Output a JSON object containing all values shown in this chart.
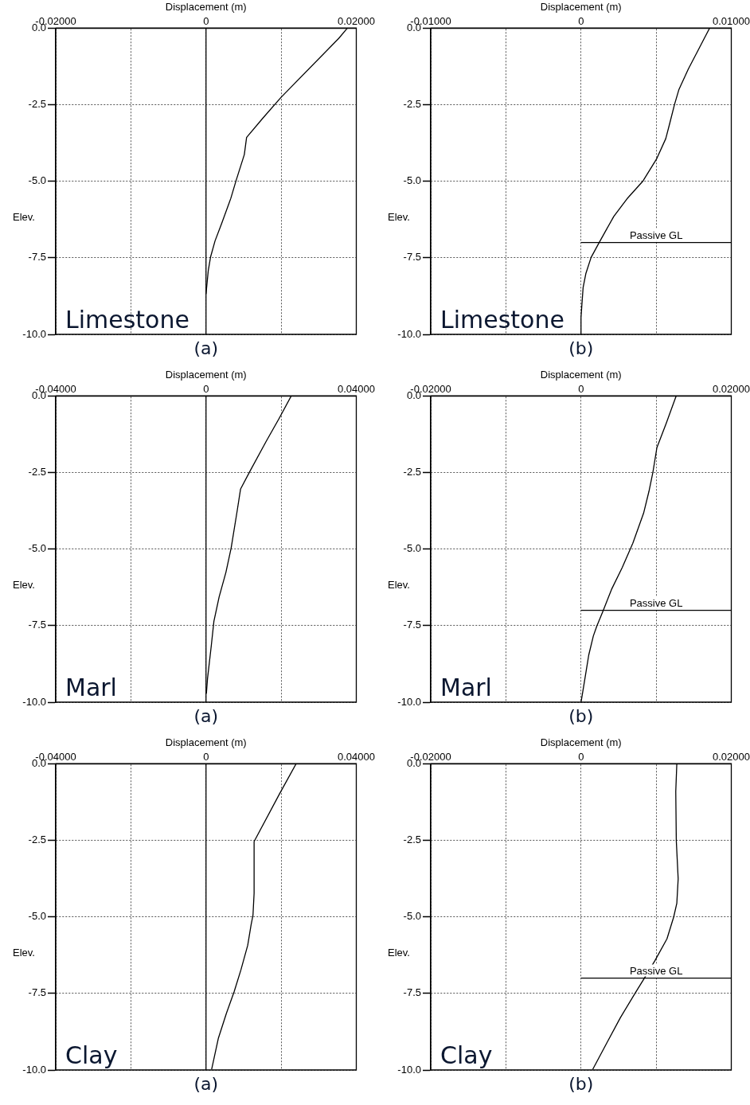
{
  "chart_data": [
    {
      "type": "line",
      "xlabel": "Displacement (m)",
      "ylabel": "Elev.",
      "annotations": [
        "Limestone",
        "(a)"
      ],
      "grid": true,
      "xlim": [
        -0.02,
        0.02
      ],
      "xticks": [
        {
          "value": -0.02,
          "label": "-0.02000"
        },
        {
          "value": -0.01,
          "label": null
        },
        {
          "value": 0,
          "label": "0"
        },
        {
          "value": 0.01,
          "label": null
        },
        {
          "value": 0.02,
          "label": "0.02000"
        }
      ],
      "ylim": [
        -10,
        0
      ],
      "yticks": [
        {
          "value": -10,
          "label": "-10.0"
        },
        {
          "value": -7.5,
          "label": "-7.5"
        },
        {
          "value": -5,
          "label": "-5.0"
        },
        {
          "value": -2.5,
          "label": "-2.5"
        },
        {
          "value": 0,
          "label": "0.0"
        }
      ],
      "ref_lines": [
        {
          "axis": "x",
          "value": 0,
          "label": null
        }
      ],
      "series": [
        {
          "color": "#000000",
          "x": [
            0.01883,
            0.01766,
            0.01,
            0.0076,
            0.0054,
            0.0051,
            0.004,
            0.0033,
            0.0021,
            0.0012,
            0.0006,
            0.0003,
            0
          ],
          "values": [
            0,
            -0.34,
            -2.26,
            -2.93,
            -3.57,
            -4.13,
            -4.98,
            -5.56,
            -6.37,
            -6.95,
            -7.48,
            -7.92,
            -8.68
          ]
        }
      ]
    },
    {
      "type": "line",
      "xlabel": "Displacement (m)",
      "ylabel": "Elev.",
      "annotations": [
        "Limestone",
        "(b)"
      ],
      "grid": true,
      "xlim": [
        -0.01,
        0.01
      ],
      "xticks": [
        {
          "value": -0.01,
          "label": "-0.01000"
        },
        {
          "value": -0.005,
          "label": null
        },
        {
          "value": 0,
          "label": "0"
        },
        {
          "value": 0.005,
          "label": null
        },
        {
          "value": 0.01,
          "label": "0.01000"
        }
      ],
      "ylim": [
        -10,
        0
      ],
      "yticks": [
        {
          "value": -10,
          "label": "-10.0"
        },
        {
          "value": -7.5,
          "label": "-7.5"
        },
        {
          "value": -5,
          "label": "-5.0"
        },
        {
          "value": -2.5,
          "label": "-2.5"
        },
        {
          "value": 0,
          "label": "0.0"
        }
      ],
      "ref_lines": [
        {
          "axis": "y",
          "value": -7,
          "label": "Passive GL"
        }
      ],
      "series": [
        {
          "color": "#000000",
          "x": [
            0.00856,
            0.00785,
            0.00714,
            0.00652,
            0.00622,
            0.0059,
            0.00564,
            0.00502,
            0.00413,
            0.00307,
            0.00218,
            0.00121,
            0.00067,
            0.00032,
            0.00014,
            5e-05,
            0,
            0
          ],
          "values": [
            0,
            -0.67,
            -1.34,
            -2,
            -2.5,
            -3.12,
            -3.61,
            -4.28,
            -4.99,
            -5.57,
            -6.15,
            -7,
            -7.49,
            -8.02,
            -8.47,
            -9.09,
            -9.45,
            -10
          ]
        }
      ]
    },
    {
      "type": "line",
      "xlabel": "Displacement (m)",
      "ylabel": "Elev.",
      "annotations": [
        "Marl",
        "(a)"
      ],
      "grid": true,
      "xlim": [
        -0.04,
        0.04
      ],
      "xticks": [
        {
          "value": -0.04,
          "label": "-0.04000"
        },
        {
          "value": -0.02,
          "label": null
        },
        {
          "value": 0,
          "label": "0"
        },
        {
          "value": 0.02,
          "label": null
        },
        {
          "value": 0.04,
          "label": "0.04000"
        }
      ],
      "ylim": [
        -10,
        0
      ],
      "yticks": [
        {
          "value": -10,
          "label": "-10.0"
        },
        {
          "value": -7.5,
          "label": "-7.5"
        },
        {
          "value": -5,
          "label": "-5.0"
        },
        {
          "value": -2.5,
          "label": "-2.5"
        },
        {
          "value": 0,
          "label": "0.0"
        }
      ],
      "ref_lines": [
        {
          "axis": "x",
          "value": 0,
          "label": null
        }
      ],
      "series": [
        {
          "color": "#000000",
          "x": [
            0.0227,
            0.0195,
            0.016,
            0.0117,
            0.0092,
            0.0083,
            0.0067,
            0.0053,
            0.0035,
            0.0021,
            0.0014,
            0.0004,
            0.0001
          ],
          "values": [
            0,
            -0.73,
            -1.49,
            -2.46,
            -3.04,
            -3.75,
            -4.96,
            -5.76,
            -6.56,
            -7.36,
            -8.16,
            -9.23,
            -9.72
          ]
        }
      ]
    },
    {
      "type": "line",
      "xlabel": "Displacement (m)",
      "ylabel": "Elev.",
      "annotations": [
        "Marl",
        "(b)"
      ],
      "grid": true,
      "xlim": [
        -0.02,
        0.02
      ],
      "xticks": [
        {
          "value": -0.02,
          "label": "-0.02000"
        },
        {
          "value": -0.01,
          "label": null
        },
        {
          "value": 0,
          "label": "0"
        },
        {
          "value": 0.01,
          "label": null
        },
        {
          "value": 0.02,
          "label": "0.02000"
        }
      ],
      "ylim": [
        -10,
        0
      ],
      "yticks": [
        {
          "value": -10,
          "label": "-10.0"
        },
        {
          "value": -7.5,
          "label": "-7.5"
        },
        {
          "value": -5,
          "label": "-5.0"
        },
        {
          "value": -2.5,
          "label": "-2.5"
        },
        {
          "value": 0,
          "label": "0.0"
        }
      ],
      "ref_lines": [
        {
          "axis": "y",
          "value": -7,
          "label": "Passive GL"
        }
      ],
      "series": [
        {
          "color": "#000000",
          "x": [
            0.01267,
            0.01135,
            0.0101,
            0.00957,
            0.00904,
            0.00833,
            0.0069,
            0.00548,
            0.00406,
            0.00292,
            0.0021,
            0.00164,
            0.00103,
            0.00068,
            0.00014,
            0
          ],
          "values": [
            0,
            -0.89,
            -1.69,
            -2.49,
            -3.12,
            -3.83,
            -4.81,
            -5.61,
            -6.32,
            -7.03,
            -7.52,
            -7.84,
            -8.46,
            -8.99,
            -9.8,
            -10
          ]
        }
      ]
    },
    {
      "type": "line",
      "xlabel": "Displacement (m)",
      "ylabel": "Elev.",
      "annotations": [
        "Clay",
        "(a)"
      ],
      "grid": true,
      "xlim": [
        -0.04,
        0.04
      ],
      "xticks": [
        {
          "value": -0.04,
          "label": "-0.04000"
        },
        {
          "value": -0.02,
          "label": null
        },
        {
          "value": 0,
          "label": "0"
        },
        {
          "value": 0.02,
          "label": null
        },
        {
          "value": 0.04,
          "label": "0.04000"
        }
      ],
      "ylim": [
        -10,
        0
      ],
      "yticks": [
        {
          "value": -10,
          "label": "-10.0"
        },
        {
          "value": -7.5,
          "label": "-7.5"
        },
        {
          "value": -5,
          "label": "-5.0"
        },
        {
          "value": -2.5,
          "label": "-2.5"
        },
        {
          "value": 0,
          "label": "0.0"
        }
      ],
      "ref_lines": [
        {
          "axis": "x",
          "value": 0,
          "label": null
        }
      ],
      "series": [
        {
          "color": "#000000",
          "x": [
            0.024,
            0.0196,
            0.0132,
            0.0128,
            0.0128,
            0.0125,
            0.012,
            0.0111,
            0.0093,
            0.0075,
            0.0054,
            0.0033,
            0.0015
          ],
          "values": [
            0,
            -0.98,
            -2.45,
            -2.54,
            -4.23,
            -4.95,
            -5.26,
            -5.93,
            -6.73,
            -7.44,
            -8.16,
            -8.96,
            -9.98
          ]
        }
      ]
    },
    {
      "type": "line",
      "xlabel": "Displacement (m)",
      "ylabel": "Elev.",
      "annotations": [
        "Clay",
        "(b)"
      ],
      "grid": true,
      "xlim": [
        -0.02,
        0.02
      ],
      "xticks": [
        {
          "value": -0.02,
          "label": "-0.02000"
        },
        {
          "value": -0.01,
          "label": null
        },
        {
          "value": 0,
          "label": "0"
        },
        {
          "value": 0.01,
          "label": null
        },
        {
          "value": 0.02,
          "label": "0.02000"
        }
      ],
      "ylim": [
        -10,
        0
      ],
      "yticks": [
        {
          "value": -10,
          "label": "-10.0"
        },
        {
          "value": -7.5,
          "label": "-7.5"
        },
        {
          "value": -5,
          "label": "-5.0"
        },
        {
          "value": -2.5,
          "label": "-2.5"
        },
        {
          "value": 0,
          "label": "0.0"
        }
      ],
      "ref_lines": [
        {
          "axis": "y",
          "value": -7,
          "label": "Passive GL"
        }
      ],
      "series": [
        {
          "color": "#000000",
          "x": [
            0.01275,
            0.01261,
            0.01268,
            0.01293,
            0.01275,
            0.01233,
            0.01144,
            0.00984,
            0.00842,
            0.00718,
            0.00522,
            0.00345,
            0.00156
          ],
          "values": [
            0,
            -0.91,
            -2.51,
            -3.76,
            -4.56,
            -5.01,
            -5.72,
            -6.43,
            -7.01,
            -7.5,
            -8.3,
            -9.11,
            -9.98
          ]
        }
      ]
    }
  ]
}
